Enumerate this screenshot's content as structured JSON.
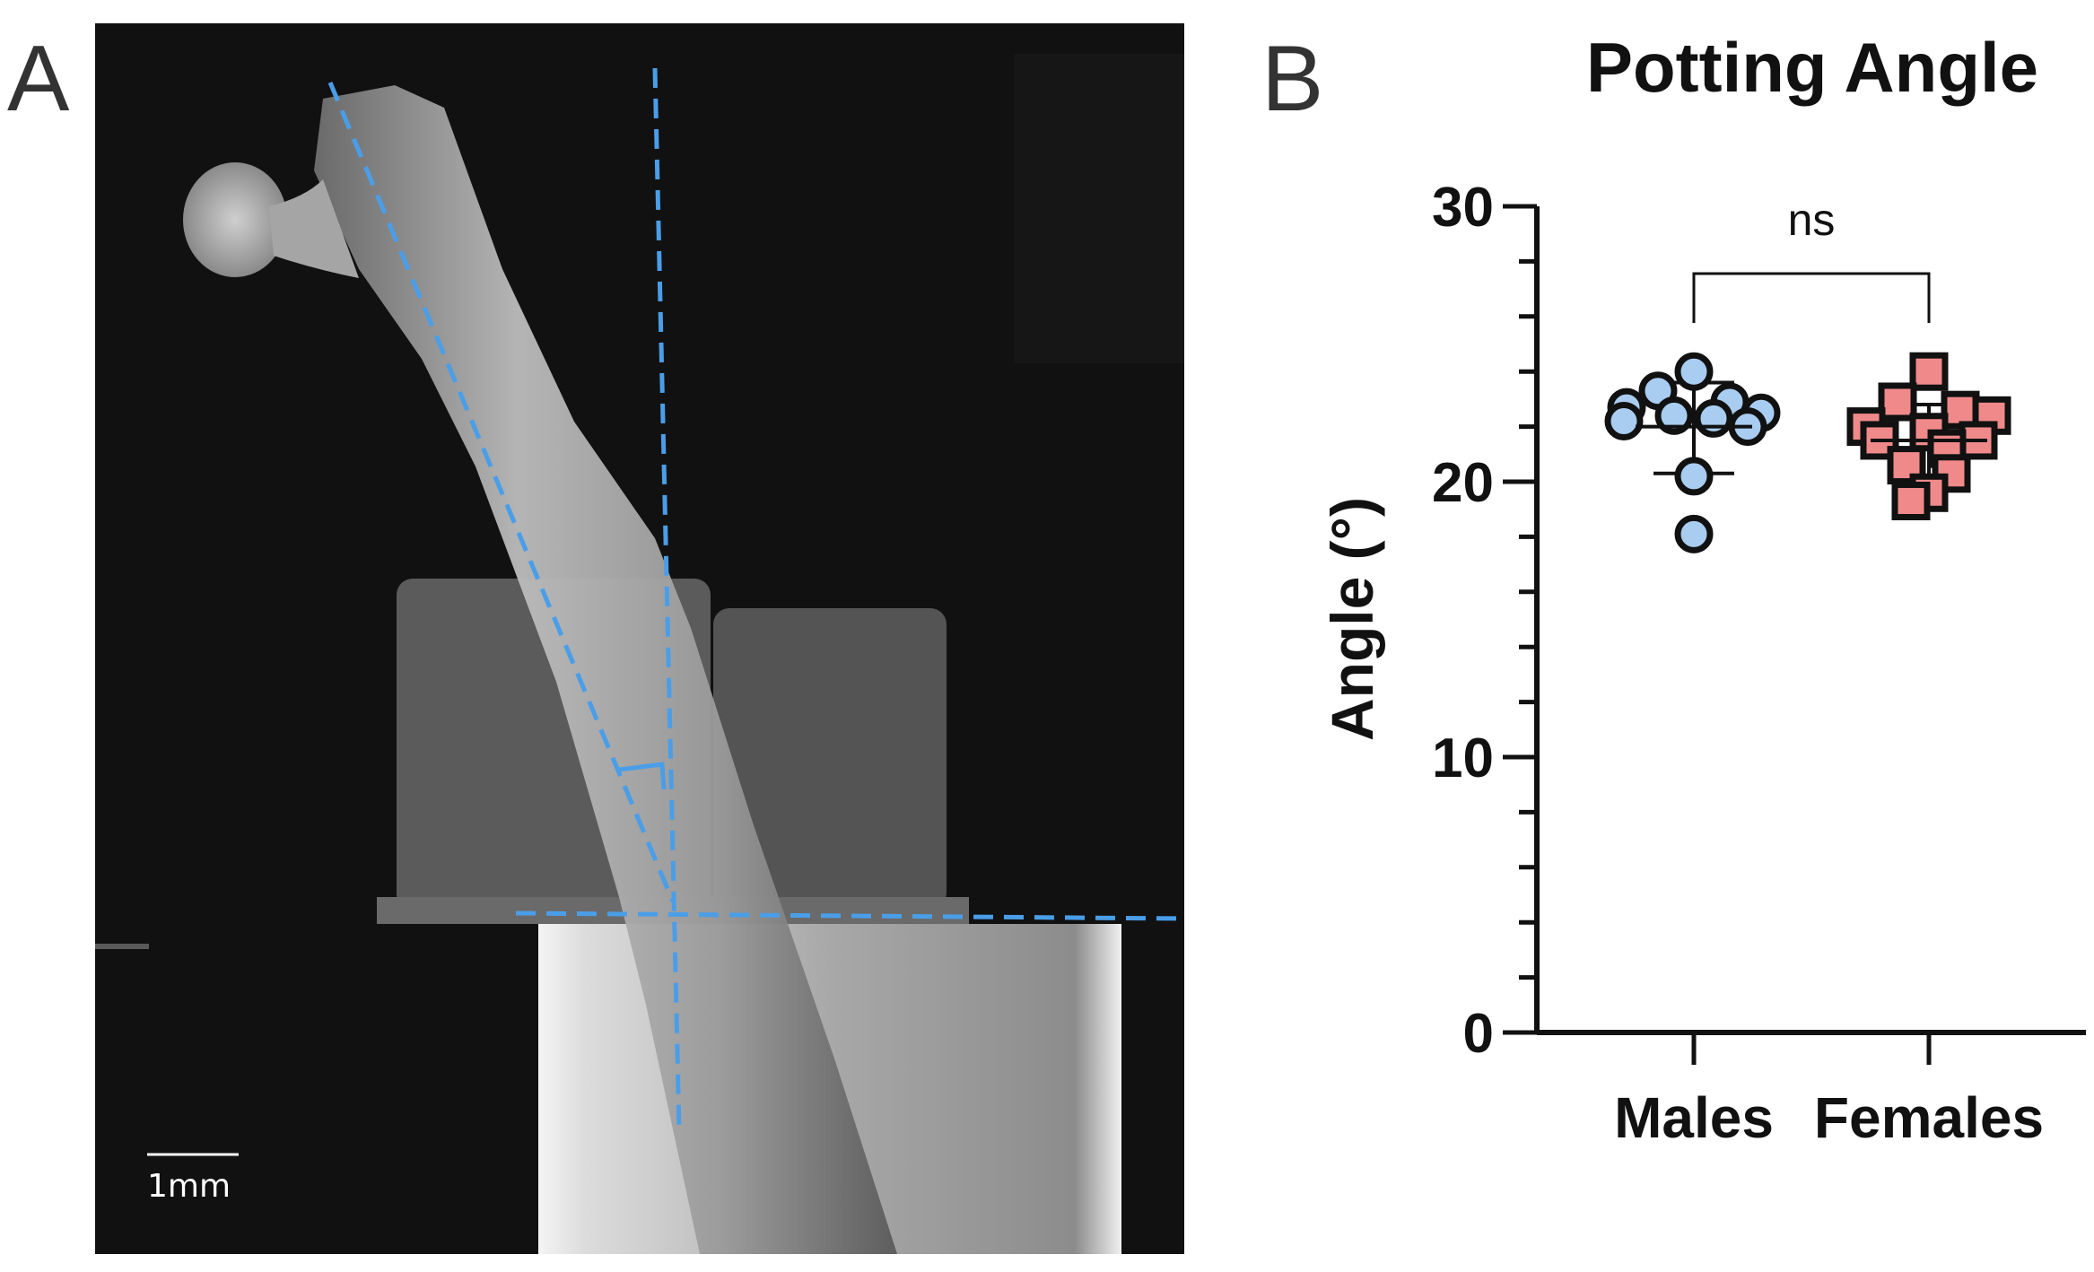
{
  "panels": {
    "a_label": "A",
    "b_label": "B"
  },
  "xray": {
    "scale_bar_label": "1mm",
    "overlay_color": "#4a9ee8"
  },
  "chart_data": {
    "type": "scatter",
    "title": "Potting Angle",
    "xlabel": "",
    "ylabel": "Angle (°)",
    "ylim": [
      0,
      30
    ],
    "yticks": [
      0,
      10,
      20,
      30
    ],
    "categories": [
      "Males",
      "Females"
    ],
    "significance": {
      "label": "ns",
      "between": [
        "Males",
        "Females"
      ]
    },
    "series": [
      {
        "name": "Males",
        "marker": "circle",
        "color": "#a9cdf0",
        "values": [
          24.0,
          23.3,
          22.9,
          22.7,
          22.5,
          22.4,
          22.3,
          22.2,
          22.0,
          20.2,
          18.1
        ],
        "mean": 22.0,
        "sd_low": 20.3,
        "sd_high": 23.6
      },
      {
        "name": "Females",
        "marker": "square",
        "color": "#f08a8a",
        "values": [
          24.0,
          22.9,
          22.6,
          22.4,
          22.0,
          21.8,
          21.5,
          21.5,
          21.2,
          20.6,
          20.3,
          19.6,
          19.3
        ],
        "mean": 21.5,
        "sd_low": 20.2,
        "sd_high": 22.8
      }
    ]
  }
}
